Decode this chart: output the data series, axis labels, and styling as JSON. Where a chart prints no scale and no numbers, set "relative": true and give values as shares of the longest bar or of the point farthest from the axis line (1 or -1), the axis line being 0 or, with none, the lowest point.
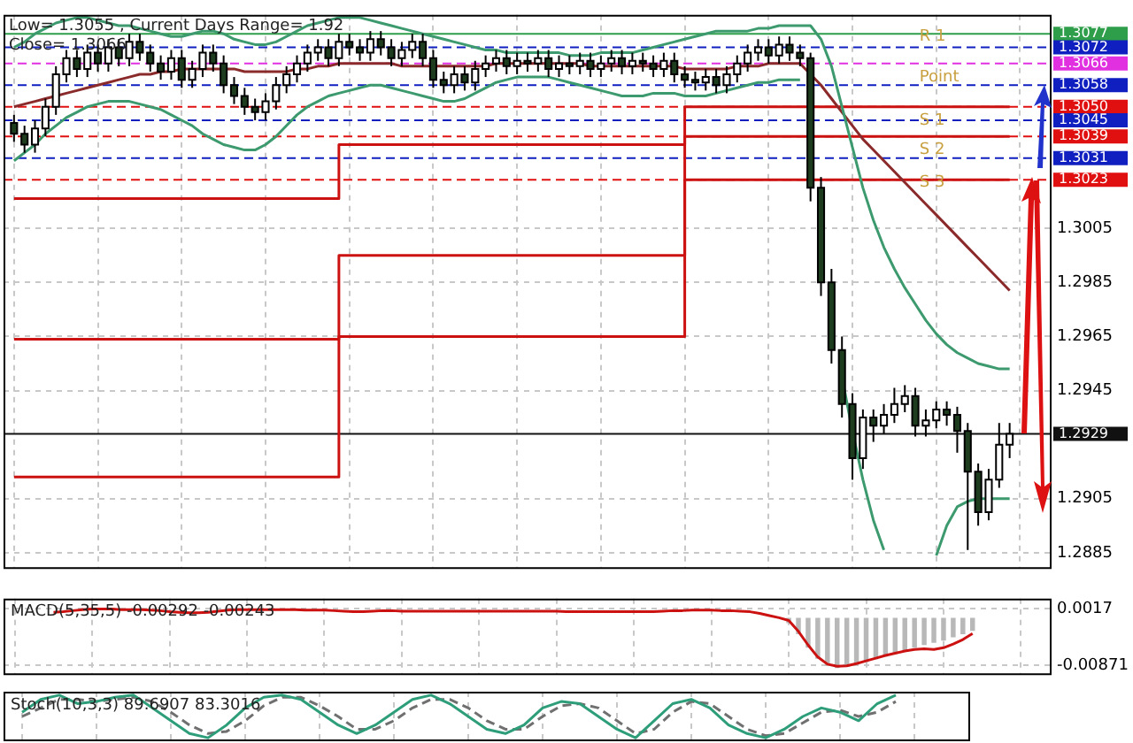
{
  "chart_data": [
    {
      "type": "candlestick",
      "colors": [
        "#1e3d1e",
        "#1e3d1e",
        "#ffffff",
        "#ffffff",
        "#ffffff",
        "#ffffff",
        "#1e3d1e",
        "#ffffff",
        "#1e3d1e",
        "#ffffff",
        "#1e3d1e",
        "#ffffff",
        "#1e3d1e",
        "#1e3d1e",
        "#1e3d1e",
        "#ffffff",
        "#1e3d1e",
        "#ffffff",
        "#ffffff",
        "#1e3d1e",
        "#1e3d1e",
        "#1e3d1e",
        "#1e3d1e",
        "#1e3d1e",
        "#ffffff",
        "#ffffff",
        "#ffffff",
        "#ffffff",
        "#ffffff",
        "#ffffff",
        "#1e3d1e",
        "#ffffff",
        "#1e3d1e",
        "#1e3d1e",
        "#ffffff",
        "#1e3d1e",
        "#1e3d1e",
        "#ffffff",
        "#ffffff",
        "#1e3d1e",
        "#1e3d1e",
        "#1e3d1e",
        "#ffffff",
        "#1e3d1e",
        "#ffffff",
        "#ffffff",
        "#ffffff",
        "#1e3d1e",
        "#ffffff",
        "#1e3d1e",
        "#ffffff",
        "#1e3d1e",
        "#ffffff",
        "#1e3d1e",
        "#ffffff",
        "#1e3d1e",
        "#ffffff",
        "#ffffff",
        "#1e3d1e",
        "#ffffff",
        "#1e3d1e",
        "#1e3d1e",
        "#ffffff",
        "#1e3d1e",
        "#1e3d1e",
        "#1e3d1e",
        "#ffffff",
        "#1e3d1e",
        "#ffffff",
        "#ffffff",
        "#ffffff",
        "#ffffff",
        "#1e3d1e",
        "#ffffff",
        "#1e3d1e",
        "#1e3d1e",
        "#1e3d1e",
        "#1e3d1e",
        "#1e3d1e",
        "#1e3d1e",
        "#1e3d1e",
        "#ffffff",
        "#1e3d1e",
        "#ffffff",
        "#ffffff",
        "#ffffff",
        "#1e3d1e",
        "#ffffff",
        "#ffffff",
        "#1e3d1e",
        "#1e3d1e",
        "#1e3d1e",
        "#1e3d1e",
        "#ffffff",
        "#ffffff",
        "#ffffff"
      ],
      "categories": [
        null,
        null,
        null,
        null,
        null,
        null,
        null,
        null,
        null,
        null,
        null,
        null,
        null,
        null,
        null,
        null,
        null,
        null,
        null,
        null,
        null,
        null,
        null,
        null,
        null,
        null,
        null,
        null,
        null,
        null,
        null,
        null,
        null,
        null,
        null,
        null,
        null,
        null,
        null,
        null,
        null,
        null,
        null,
        null,
        null,
        null,
        null,
        null,
        null,
        null,
        null,
        null,
        null,
        null,
        null,
        null,
        null,
        null,
        null,
        null,
        null,
        null,
        null,
        null,
        null,
        null,
        null,
        null,
        null,
        null,
        null,
        null,
        null,
        null,
        null,
        null,
        null,
        null,
        null,
        null,
        null,
        null,
        null,
        null,
        null,
        null,
        null,
        null,
        null,
        null,
        null,
        null,
        null,
        null,
        null,
        null
      ],
      "ohlc": [
        [
          1.3044,
          1.3047,
          1.3037,
          1.304
        ],
        [
          1.304,
          1.3043,
          1.3033,
          1.3036
        ],
        [
          1.3036,
          1.3045,
          1.3033,
          1.3042
        ],
        [
          1.3042,
          1.3053,
          1.3039,
          1.305
        ],
        [
          1.305,
          1.3065,
          1.3047,
          1.3062
        ],
        [
          1.3062,
          1.3071,
          1.3059,
          1.3068
        ],
        [
          1.3068,
          1.3071,
          1.3061,
          1.3064
        ],
        [
          1.3064,
          1.3073,
          1.3061,
          1.307
        ],
        [
          1.307,
          1.3073,
          1.3063,
          1.3066
        ],
        [
          1.3066,
          1.3075,
          1.3063,
          1.3072
        ],
        [
          1.3072,
          1.3075,
          1.3065,
          1.3068
        ],
        [
          1.3068,
          1.3077,
          1.3065,
          1.3074
        ],
        [
          1.3074,
          1.3077,
          1.3067,
          1.307
        ],
        [
          1.307,
          1.3073,
          1.3063,
          1.3066
        ],
        [
          1.3066,
          1.3069,
          1.306,
          1.3063
        ],
        [
          1.3063,
          1.3071,
          1.306,
          1.3068
        ],
        [
          1.3068,
          1.3071,
          1.3057,
          1.306
        ],
        [
          1.306,
          1.3067,
          1.3057,
          1.3064
        ],
        [
          1.3064,
          1.3073,
          1.3061,
          1.307
        ],
        [
          1.307,
          1.3073,
          1.3063,
          1.3066
        ],
        [
          1.3066,
          1.3069,
          1.3055,
          1.3058
        ],
        [
          1.3058,
          1.3061,
          1.3051,
          1.3054
        ],
        [
          1.3054,
          1.3057,
          1.3047,
          1.305
        ],
        [
          1.305,
          1.3053,
          1.3045,
          1.3048
        ],
        [
          1.3048,
          1.3055,
          1.3045,
          1.3052
        ],
        [
          1.3052,
          1.3061,
          1.3049,
          1.3058
        ],
        [
          1.3058,
          1.3065,
          1.3055,
          1.3062
        ],
        [
          1.3062,
          1.3069,
          1.3059,
          1.3066
        ],
        [
          1.3066,
          1.3073,
          1.3063,
          1.307
        ],
        [
          1.307,
          1.3075,
          1.3067,
          1.3072
        ],
        [
          1.3072,
          1.3075,
          1.3065,
          1.3068
        ],
        [
          1.3068,
          1.3077,
          1.3065,
          1.3074
        ],
        [
          1.3074,
          1.3077,
          1.3069,
          1.3072
        ],
        [
          1.3072,
          1.3075,
          1.3067,
          1.307
        ],
        [
          1.307,
          1.3078,
          1.3067,
          1.3075
        ],
        [
          1.3075,
          1.3078,
          1.3069,
          1.3072
        ],
        [
          1.3072,
          1.3075,
          1.3065,
          1.3068
        ],
        [
          1.3068,
          1.3074,
          1.3065,
          1.3071
        ],
        [
          1.3071,
          1.3077,
          1.3068,
          1.3074
        ],
        [
          1.3074,
          1.3077,
          1.3065,
          1.3068
        ],
        [
          1.3068,
          1.3071,
          1.3057,
          1.306
        ],
        [
          1.306,
          1.3063,
          1.3055,
          1.3058
        ],
        [
          1.3058,
          1.3065,
          1.3055,
          1.3062
        ],
        [
          1.3062,
          1.3065,
          1.3056,
          1.3059
        ],
        [
          1.3059,
          1.3067,
          1.3056,
          1.3064
        ],
        [
          1.3064,
          1.3069,
          1.3061,
          1.3066
        ],
        [
          1.3066,
          1.3071,
          1.3063,
          1.3068
        ],
        [
          1.3068,
          1.3071,
          1.3062,
          1.3065
        ],
        [
          1.3065,
          1.307,
          1.3062,
          1.3067
        ],
        [
          1.3067,
          1.307,
          1.3063,
          1.3066
        ],
        [
          1.3066,
          1.3071,
          1.3063,
          1.3068
        ],
        [
          1.3068,
          1.3071,
          1.3061,
          1.3064
        ],
        [
          1.3064,
          1.3069,
          1.3061,
          1.3066
        ],
        [
          1.3066,
          1.3069,
          1.3062,
          1.3065
        ],
        [
          1.3065,
          1.307,
          1.3062,
          1.3067
        ],
        [
          1.3067,
          1.307,
          1.3061,
          1.3064
        ],
        [
          1.3064,
          1.3069,
          1.3061,
          1.3066
        ],
        [
          1.3066,
          1.3071,
          1.3063,
          1.3068
        ],
        [
          1.3068,
          1.3071,
          1.3062,
          1.3065
        ],
        [
          1.3065,
          1.307,
          1.3062,
          1.3067
        ],
        [
          1.3067,
          1.307,
          1.3063,
          1.3066
        ],
        [
          1.3066,
          1.3069,
          1.3061,
          1.3064
        ],
        [
          1.3064,
          1.307,
          1.3061,
          1.3067
        ],
        [
          1.3067,
          1.307,
          1.3059,
          1.3062
        ],
        [
          1.3062,
          1.3065,
          1.3057,
          1.306
        ],
        [
          1.306,
          1.3063,
          1.3056,
          1.3059
        ],
        [
          1.3059,
          1.3064,
          1.3056,
          1.3061
        ],
        [
          1.3061,
          1.3064,
          1.3055,
          1.3058
        ],
        [
          1.3058,
          1.3065,
          1.3055,
          1.3062
        ],
        [
          1.3062,
          1.3069,
          1.3059,
          1.3066
        ],
        [
          1.3066,
          1.3073,
          1.3063,
          1.307
        ],
        [
          1.307,
          1.3075,
          1.3067,
          1.3072
        ],
        [
          1.3072,
          1.3075,
          1.3066,
          1.3069
        ],
        [
          1.3069,
          1.3076,
          1.3066,
          1.3073
        ],
        [
          1.3073,
          1.3076,
          1.3067,
          1.307
        ],
        [
          1.307,
          1.3073,
          1.3065,
          1.3068
        ],
        [
          1.3068,
          1.307,
          1.3015,
          1.302
        ],
        [
          1.302,
          1.3024,
          1.298,
          1.2985
        ],
        [
          1.2985,
          1.299,
          1.2955,
          1.296
        ],
        [
          1.296,
          1.2965,
          1.2935,
          1.294
        ],
        [
          1.294,
          1.2944,
          1.2912,
          1.292
        ],
        [
          1.292,
          1.2938,
          1.2916,
          1.2935
        ],
        [
          1.2935,
          1.2938,
          1.2926,
          1.2932
        ],
        [
          1.2932,
          1.294,
          1.2929,
          1.2936
        ],
        [
          1.2936,
          1.2946,
          1.2933,
          1.294
        ],
        [
          1.294,
          1.2947,
          1.2937,
          1.2943
        ],
        [
          1.2943,
          1.2946,
          1.2928,
          1.2932
        ],
        [
          1.2932,
          1.2938,
          1.2928,
          1.2934
        ],
        [
          1.2934,
          1.2941,
          1.2931,
          1.2938
        ],
        [
          1.2938,
          1.2941,
          1.2932,
          1.2936
        ],
        [
          1.2936,
          1.2939,
          1.2922,
          1.293
        ],
        [
          1.293,
          1.2933,
          1.2886,
          1.2915
        ],
        [
          1.2915,
          1.2918,
          1.2895,
          1.29
        ],
        [
          1.29,
          1.2916,
          1.2897,
          1.2912
        ],
        [
          1.2912,
          1.2933,
          1.2909,
          1.2925
        ],
        [
          1.2925,
          1.2933,
          1.292,
          1.2929
        ]
      ],
      "series": [
        {
          "type": "line",
          "color": "#3c9a6e",
          "values": [
            1.3072,
            1.3074,
            1.3077,
            1.3079,
            1.3081,
            1.3082,
            1.3083,
            1.3083,
            1.3082,
            1.3081,
            1.308,
            1.308,
            1.3079,
            1.3078,
            1.3077,
            1.3076,
            1.3076,
            1.3077,
            1.3078,
            1.3078,
            1.3077,
            1.3075,
            1.3074,
            1.3073,
            1.3073,
            1.3074,
            1.3076,
            1.3078,
            1.308,
            1.3081,
            1.3082,
            1.3083,
            1.3083,
            1.3083,
            1.3082,
            1.3081,
            1.308,
            1.3079,
            1.3078,
            1.3077,
            1.3076,
            1.3075,
            1.3074,
            1.3073,
            1.3072,
            1.3071,
            1.3071,
            1.307,
            1.307,
            1.307,
            1.307,
            1.307,
            1.307,
            1.3069,
            1.3069,
            1.3069,
            1.307,
            1.307,
            1.307,
            1.307,
            1.3071,
            1.3072,
            1.3073,
            1.3074,
            1.3075,
            1.3076,
            1.3077,
            1.3078,
            1.3078,
            1.3078,
            1.3078,
            1.3079,
            1.3079,
            1.308,
            1.308,
            1.308,
            1.308,
            1.3075,
            1.3065,
            1.305,
            1.3035,
            1.302,
            1.3008,
            1.2998,
            1.299,
            1.2983,
            1.2977,
            1.2971,
            1.2966,
            1.2962,
            1.2959,
            1.2957,
            1.2955,
            1.2954,
            1.2953,
            1.2953
          ]
        },
        {
          "type": "line",
          "color": "#3c9a6e",
          "values": [
            1.303,
            1.3033,
            1.3036,
            1.304,
            1.3043,
            1.3046,
            1.3048,
            1.305,
            1.3051,
            1.3052,
            1.3052,
            1.3052,
            1.3051,
            1.305,
            1.3049,
            1.3047,
            1.3045,
            1.3043,
            1.304,
            1.3038,
            1.3036,
            1.3035,
            1.3034,
            1.3034,
            1.3036,
            1.3039,
            1.3043,
            1.3047,
            1.305,
            1.3052,
            1.3054,
            1.3055,
            1.3056,
            1.3057,
            1.3058,
            1.3058,
            1.3057,
            1.3056,
            1.3055,
            1.3054,
            1.3053,
            1.3052,
            1.3052,
            1.3053,
            1.3055,
            1.3057,
            1.3059,
            1.306,
            1.3061,
            1.3061,
            1.3061,
            1.3061,
            1.306,
            1.3059,
            1.3058,
            1.3057,
            1.3056,
            1.3055,
            1.3054,
            1.3054,
            1.3054,
            1.3055,
            1.3055,
            1.3055,
            1.3054,
            1.3054,
            1.3054,
            1.3055,
            1.3056,
            1.3057,
            1.3058,
            1.3059,
            1.3059,
            1.306,
            1.306,
            1.306,
            null,
            null,
            null,
            1.295,
            1.293,
            1.2912,
            1.2897,
            1.2886,
            null,
            null,
            null,
            null,
            1.2884,
            1.2895,
            1.2902,
            1.2904,
            1.2905,
            1.2905,
            1.2905,
            1.2905
          ]
        },
        {
          "type": "line",
          "color": "#8b2a2a",
          "values": [
            1.305,
            1.3051,
            1.3052,
            1.3053,
            1.3054,
            1.3055,
            1.3056,
            1.3057,
            1.3058,
            1.3059,
            1.306,
            1.3061,
            1.3062,
            1.3062,
            1.3063,
            1.3063,
            1.3064,
            1.3064,
            1.3064,
            1.3064,
            1.3064,
            1.3064,
            1.3063,
            1.3063,
            1.3063,
            1.3063,
            1.3063,
            1.3064,
            1.3064,
            1.3065,
            1.3065,
            1.3066,
            1.3066,
            1.3066,
            1.3066,
            1.3066,
            1.3066,
            1.3065,
            1.3065,
            1.3065,
            1.3065,
            1.3065,
            1.3065,
            1.3065,
            1.3065,
            1.3065,
            1.3066,
            1.3066,
            1.3066,
            1.3066,
            1.3066,
            1.3066,
            1.3066,
            1.3066,
            1.3066,
            1.3065,
            1.3065,
            1.3065,
            1.3065,
            1.3065,
            1.3065,
            1.3065,
            1.3065,
            1.3065,
            1.3064,
            1.3064,
            1.3064,
            1.3064,
            1.3064,
            1.3065,
            1.3065,
            1.3065,
            1.3066,
            1.3066,
            1.3066,
            1.3066,
            1.3062,
            1.3058,
            1.3053,
            1.3048,
            1.3043,
            1.3038,
            1.3034,
            1.303,
            1.3026,
            1.3022,
            1.3018,
            1.3014,
            1.301,
            1.3006,
            1.3002,
            1.2998,
            1.2994,
            1.299,
            1.2986,
            1.2982
          ]
        },
        {
          "type": "step",
          "color": "#cc1111",
          "values": [
            1.3016,
            1.3016,
            1.3016,
            1.3016,
            1.3016,
            1.3016,
            1.3016,
            1.3016,
            1.3016,
            1.3016,
            1.3016,
            1.3016,
            1.3016,
            1.3016,
            1.3016,
            1.3016,
            1.3016,
            1.3016,
            1.3016,
            1.3016,
            1.3016,
            1.3016,
            1.3016,
            1.3016,
            1.3016,
            1.3016,
            1.3016,
            1.3016,
            1.3016,
            1.3016,
            1.3016,
            1.3036,
            1.3036,
            1.3036,
            1.3036,
            1.3036,
            1.3036,
            1.3036,
            1.3036,
            1.3036,
            1.3036,
            1.3036,
            1.3036,
            1.3036,
            1.3036,
            1.3036,
            1.3036,
            1.3036,
            1.3036,
            1.3036,
            1.3036,
            1.3036,
            1.3036,
            1.3036,
            1.3036,
            1.3036,
            1.3036,
            1.3036,
            1.3036,
            1.3036,
            1.3036,
            1.3036,
            1.3036,
            1.3036,
            1.305,
            1.305,
            1.305,
            1.305,
            1.305,
            1.305,
            1.305,
            1.305,
            1.305,
            1.305,
            1.305,
            1.305,
            1.305,
            1.305,
            1.305,
            1.305,
            1.305,
            1.305,
            1.305,
            1.305,
            1.305,
            1.305,
            1.305,
            1.305,
            1.305,
            1.305,
            1.305,
            1.305,
            1.305,
            1.305,
            1.305,
            1.305
          ]
        },
        {
          "type": "step",
          "color": "#cc1111",
          "values": [
            1.2964,
            1.2964,
            1.2964,
            1.2964,
            1.2964,
            1.2964,
            1.2964,
            1.2964,
            1.2964,
            1.2964,
            1.2964,
            1.2964,
            1.2964,
            1.2964,
            1.2964,
            1.2964,
            1.2964,
            1.2964,
            1.2964,
            1.2964,
            1.2964,
            1.2964,
            1.2964,
            1.2964,
            1.2964,
            1.2964,
            1.2964,
            1.2964,
            1.2964,
            1.2964,
            1.2964,
            1.2995,
            1.2995,
            1.2995,
            1.2995,
            1.2995,
            1.2995,
            1.2995,
            1.2995,
            1.2995,
            1.2995,
            1.2995,
            1.2995,
            1.2995,
            1.2995,
            1.2995,
            1.2995,
            1.2995,
            1.2995,
            1.2995,
            1.2995,
            1.2995,
            1.2995,
            1.2995,
            1.2995,
            1.2995,
            1.2995,
            1.2995,
            1.2995,
            1.2995,
            1.2995,
            1.2995,
            1.2995,
            1.2995,
            1.3039,
            1.3039,
            1.3039,
            1.3039,
            1.3039,
            1.3039,
            1.3039,
            1.3039,
            1.3039,
            1.3039,
            1.3039,
            1.3039,
            1.3039,
            1.3039,
            1.3039,
            1.3039,
            1.3039,
            1.3039,
            1.3039,
            1.3039,
            1.3039,
            1.3039,
            1.3039,
            1.3039,
            1.3039,
            1.3039,
            1.3039,
            1.3039,
            1.3039,
            1.3039,
            1.3039,
            1.3039
          ]
        },
        {
          "type": "step",
          "color": "#cc1111",
          "values": [
            1.2913,
            1.2913,
            1.2913,
            1.2913,
            1.2913,
            1.2913,
            1.2913,
            1.2913,
            1.2913,
            1.2913,
            1.2913,
            1.2913,
            1.2913,
            1.2913,
            1.2913,
            1.2913,
            1.2913,
            1.2913,
            1.2913,
            1.2913,
            1.2913,
            1.2913,
            1.2913,
            1.2913,
            1.2913,
            1.2913,
            1.2913,
            1.2913,
            1.2913,
            1.2913,
            1.2913,
            1.2965,
            1.2965,
            1.2965,
            1.2965,
            1.2965,
            1.2965,
            1.2965,
            1.2965,
            1.2965,
            1.2965,
            1.2965,
            1.2965,
            1.2965,
            1.2965,
            1.2965,
            1.2965,
            1.2965,
            1.2965,
            1.2965,
            1.2965,
            1.2965,
            1.2965,
            1.2965,
            1.2965,
            1.2965,
            1.2965,
            1.2965,
            1.2965,
            1.2965,
            1.2965,
            1.2965,
            1.2965,
            1.2965,
            1.3023,
            1.3023,
            1.3023,
            1.3023,
            1.3023,
            1.3023,
            1.3023,
            1.3023,
            1.3023,
            1.3023,
            1.3023,
            1.3023,
            1.3023,
            1.3023,
            1.3023,
            1.3023,
            1.3023,
            1.3023,
            1.3023,
            1.3023,
            1.3023,
            1.3023,
            1.3023,
            1.3023,
            1.3023,
            1.3023,
            1.3023,
            1.3023,
            1.3023,
            1.3023,
            1.3023,
            1.3023
          ]
        }
      ],
      "ylim": [
        1.2879,
        1.3084
      ],
      "yticks": [
        1.3005,
        1.2985,
        1.2965,
        1.2945,
        1.2905,
        1.2885
      ],
      "ref_lines": [
        {
          "axis": "y",
          "value": 1.3077,
          "label": "1.3077",
          "color": "#2e9e4a",
          "line_style": "solid"
        },
        {
          "axis": "y",
          "value": 1.3072,
          "label": "1.3072",
          "color": "#1020c0",
          "line_style": "dashed"
        },
        {
          "axis": "y",
          "value": 1.3066,
          "label": "1.3066",
          "color": "#e030e0",
          "line_style": "dashed"
        },
        {
          "axis": "y",
          "value": 1.3058,
          "label": "1.3058",
          "color": "#1020c0",
          "line_style": "dashed"
        },
        {
          "axis": "y",
          "value": 1.305,
          "label": "1.3050",
          "color": "#e01010",
          "line_style": "dashed"
        },
        {
          "axis": "y",
          "value": 1.3045,
          "label": "1.3045",
          "color": "#1020c0",
          "line_style": "dashed"
        },
        {
          "axis": "y",
          "value": 1.3039,
          "label": "1.3039",
          "color": "#e01010",
          "line_style": "dashed"
        },
        {
          "axis": "y",
          "value": 1.3031,
          "label": "1.3031",
          "color": "#1020c0",
          "line_style": "dashed"
        },
        {
          "axis": "y",
          "value": 1.3023,
          "label": "1.3023",
          "color": "#e01010",
          "line_style": "dashed"
        },
        {
          "axis": "y",
          "value": 1.2929,
          "label": "1.2929",
          "color": "#111111",
          "line_style": "solid"
        }
      ],
      "annotations": [
        "Low= 1.3055 , Current Days Range= 1.92",
        "Close= 1.3066",
        {
          "text": "R 1",
          "y": 1.3076
        },
        {
          "text": "Point",
          "y": 1.3061
        },
        {
          "text": "S 1",
          "y": 1.3045
        },
        {
          "text": "S 2",
          "y": 1.3034
        },
        {
          "text": "S 3",
          "y": 1.3022
        }
      ],
      "grid": true,
      "tick_labels": "y"
    },
    {
      "type": "line",
      "title": "MACD(5,35,5) -0.00292 -0.00243",
      "categories": [
        null,
        null,
        null,
        null,
        null,
        null,
        null,
        null,
        null,
        null,
        null,
        null,
        null,
        null,
        null,
        null,
        null,
        null,
        null,
        null,
        null,
        null,
        null,
        null,
        null,
        null,
        null,
        null,
        null,
        null,
        null,
        null,
        null,
        null,
        null,
        null,
        null,
        null,
        null,
        null,
        null,
        null,
        null,
        null,
        null,
        null,
        null,
        null,
        null,
        null,
        null,
        null,
        null,
        null,
        null,
        null,
        null,
        null,
        null,
        null,
        null,
        null,
        null,
        null,
        null,
        null,
        null,
        null,
        null,
        null,
        null,
        null,
        null,
        null,
        null,
        null,
        null,
        null,
        null,
        null,
        null,
        null,
        null,
        null,
        null,
        null,
        null,
        null,
        null,
        null,
        null,
        null,
        null,
        null,
        null,
        null
      ],
      "series": [
        {
          "type": "bar",
          "color": "#b8b8b8",
          "values": [
            null,
            null,
            null,
            null,
            null,
            null,
            null,
            null,
            null,
            null,
            null,
            null,
            null,
            null,
            null,
            null,
            null,
            null,
            null,
            null,
            null,
            null,
            null,
            null,
            null,
            null,
            null,
            null,
            null,
            null,
            null,
            null,
            null,
            null,
            null,
            null,
            null,
            null,
            null,
            null,
            null,
            null,
            null,
            null,
            null,
            null,
            null,
            null,
            null,
            null,
            null,
            null,
            null,
            null,
            null,
            null,
            null,
            null,
            null,
            null,
            null,
            null,
            null,
            null,
            null,
            null,
            null,
            null,
            null,
            null,
            null,
            null,
            null,
            null,
            null,
            null,
            -0.001,
            -0.003,
            -0.0055,
            -0.0075,
            -0.0088,
            -0.0092,
            -0.009,
            -0.0086,
            -0.0081,
            -0.0076,
            -0.0071,
            -0.0066,
            -0.006,
            -0.0055,
            -0.005,
            -0.0046,
            -0.0042,
            -0.0036,
            -0.003,
            -0.0024
          ]
        },
        {
          "type": "line",
          "color": "#cc1111",
          "values": [
            0.001,
            0.0011,
            0.0013,
            0.0015,
            0.0016,
            0.0016,
            0.0016,
            0.0015,
            0.0015,
            0.0015,
            0.0014,
            0.0013,
            0.0011,
            0.001,
            0.0009,
            0.0009,
            0.001,
            0.0012,
            0.0014,
            0.0015,
            0.0015,
            0.0015,
            0.0015,
            0.0015,
            0.0015,
            0.0015,
            0.0014,
            0.0014,
            0.0014,
            0.0013,
            0.0012,
            0.0011,
            0.0011,
            0.0012,
            0.0013,
            0.0013,
            0.0012,
            0.0012,
            0.0012,
            0.0012,
            0.0012,
            0.0012,
            0.0012,
            0.0012,
            0.0012,
            0.0012,
            0.0012,
            0.0012,
            0.0012,
            0.0012,
            0.0012,
            0.0012,
            0.0012,
            0.0011,
            0.0011,
            0.0011,
            0.0011,
            0.0011,
            0.0011,
            0.0011,
            0.0011,
            0.0011,
            0.0011,
            0.0012,
            0.0013,
            0.0013,
            0.0014,
            0.0014,
            0.0014,
            0.0013,
            0.0013,
            0.0012,
            0.0011,
            0.0008,
            0.0004,
            0.0,
            -0.0005,
            -0.0025,
            -0.005,
            -0.0072,
            -0.0085,
            -0.0089,
            -0.0088,
            -0.0084,
            -0.0079,
            -0.0074,
            -0.0069,
            -0.0065,
            -0.0061,
            -0.0058,
            -0.0057,
            -0.0058,
            -0.0055,
            -0.0048,
            -0.004,
            -0.0029
          ]
        }
      ],
      "ylim": [
        -0.0105,
        0.0035
      ],
      "yticks": [
        0.0017,
        -0.00871
      ],
      "grid": true,
      "tick_labels": "y"
    },
    {
      "type": "line",
      "title": "Stoch(10,3,3) 89.6907 83.3016",
      "relative": true,
      "categories": [
        null,
        null,
        null,
        null,
        null,
        null,
        null,
        null,
        null,
        null,
        null,
        null,
        null,
        null,
        null,
        null,
        null,
        null,
        null,
        null,
        null,
        null,
        null,
        null,
        null,
        null,
        null,
        null,
        null,
        null,
        null,
        null,
        null,
        null,
        null,
        null,
        null,
        null,
        null,
        null,
        null,
        null,
        null,
        null,
        null,
        null,
        null,
        null
      ],
      "series": [
        {
          "color": "#2e9e7a",
          "line_style": "solid",
          "values": [
            0.6,
            0.9,
            1.0,
            0.8,
            0.85,
            0.95,
            1.0,
            0.7,
            0.4,
            0.1,
            0.0,
            0.3,
            0.7,
            0.95,
            1.0,
            0.9,
            0.6,
            0.3,
            0.1,
            0.3,
            0.6,
            0.9,
            1.0,
            0.8,
            0.5,
            0.2,
            0.1,
            0.3,
            0.7,
            0.85,
            0.8,
            0.5,
            0.2,
            0.0,
            0.4,
            0.8,
            0.9,
            0.7,
            0.3,
            0.1,
            0.0,
            0.2,
            0.5,
            0.7,
            0.6,
            0.4,
            0.8,
            1.0
          ]
        },
        {
          "color": "#707070",
          "line_style": "dashed",
          "values": [
            0.5,
            0.7,
            0.9,
            0.9,
            0.85,
            0.9,
            0.95,
            0.85,
            0.6,
            0.3,
            0.1,
            0.15,
            0.4,
            0.75,
            0.95,
            0.95,
            0.75,
            0.5,
            0.2,
            0.2,
            0.4,
            0.7,
            0.9,
            0.9,
            0.7,
            0.4,
            0.2,
            0.2,
            0.5,
            0.75,
            0.8,
            0.7,
            0.4,
            0.1,
            0.2,
            0.6,
            0.85,
            0.8,
            0.5,
            0.2,
            0.05,
            0.1,
            0.35,
            0.6,
            0.65,
            0.5,
            0.6,
            0.85
          ]
        }
      ],
      "grid": true,
      "tick_labels": false
    }
  ]
}
